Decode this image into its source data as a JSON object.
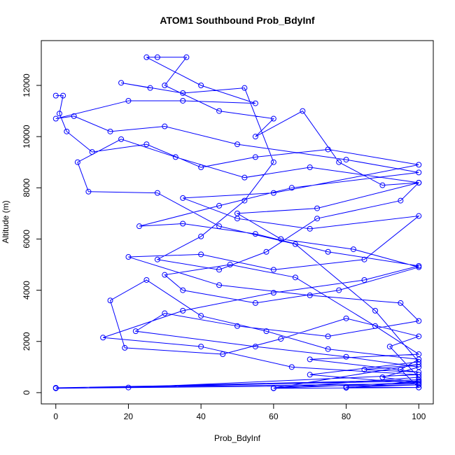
{
  "chart_data": {
    "type": "line",
    "title": "ATOM1 Southbound Prob_BdyInf",
    "x_label": "Prob_BdyInf",
    "y_label": "Altitude (m)",
    "markers": true,
    "x": [
      0,
      2,
      1,
      3,
      10,
      25,
      40,
      55,
      75,
      100,
      60,
      35,
      50,
      70,
      100,
      85,
      60,
      40,
      20,
      45,
      70,
      95,
      100,
      75,
      50,
      30,
      22,
      55,
      80,
      100,
      90,
      100,
      60,
      100,
      80,
      100,
      0,
      100,
      20,
      100,
      65,
      40,
      13,
      35,
      60,
      85,
      100,
      75,
      55,
      35,
      23,
      45,
      65,
      100,
      80,
      50,
      30,
      15,
      5,
      0,
      20,
      35,
      55,
      40,
      25,
      28,
      36,
      30,
      45,
      60,
      55,
      68,
      78,
      90,
      100,
      72,
      50,
      62,
      82,
      100,
      78,
      55,
      35,
      30,
      48,
      66,
      88,
      100,
      70,
      100,
      85,
      100,
      60,
      100,
      92,
      100,
      80,
      62,
      46,
      19,
      15,
      25,
      40,
      58,
      75,
      100,
      95,
      100,
      80,
      100,
      0,
      100,
      70,
      100,
      88,
      66,
      45,
      28,
      9,
      6,
      18,
      33,
      52,
      70,
      100,
      95,
      72,
      58,
      45,
      28,
      40,
      52,
      60,
      52,
      35,
      18,
      26
    ],
    "series": [
      {
        "color": "#0000ff",
        "values": [
          11600,
          11600,
          10900,
          10200,
          9400,
          9700,
          8800,
          9200,
          9500,
          8900,
          7800,
          7600,
          6800,
          6400,
          6900,
          5200,
          4800,
          5400,
          5300,
          4200,
          3800,
          3500,
          2800,
          2200,
          2600,
          3100,
          2400,
          1800,
          1400,
          1000,
          600,
          400,
          170,
          200,
          220,
          300,
          170,
          500,
          200,
          700,
          1000,
          1800,
          2150,
          3200,
          3900,
          4400,
          4950,
          5500,
          6200,
          6600,
          6500,
          7300,
          8000,
          8600,
          9100,
          9700,
          10400,
          10200,
          10800,
          10700,
          11400,
          11400,
          11300,
          12000,
          13100,
          13100,
          13100,
          12000,
          11000,
          10700,
          10000,
          11000,
          9000,
          8100,
          8200,
          7200,
          7000,
          6000,
          5600,
          4900,
          4000,
          3500,
          4000,
          4600,
          5000,
          4500,
          2600,
          1500,
          1300,
          800,
          900,
          1100,
          180,
          600,
          1800,
          2200,
          2900,
          2100,
          1500,
          1750,
          3600,
          4400,
          3000,
          2400,
          1700,
          1300,
          900,
          200,
          190,
          450,
          190,
          350,
          700,
          1200,
          3200,
          5800,
          6500,
          7800,
          7850,
          9000,
          9900,
          9200,
          8400,
          8800,
          8200,
          7500,
          6800,
          5500,
          4800,
          5200,
          6100,
          7500,
          9000,
          11900,
          11700,
          12100,
          11900
        ]
      }
    ],
    "xlim": [
      -4,
      104
    ],
    "ylim": [
      -440,
      13750
    ],
    "xticks": [
      0,
      20,
      40,
      60,
      80,
      100
    ],
    "yticks": [
      0,
      2000,
      4000,
      6000,
      8000,
      10000,
      12000
    ]
  }
}
